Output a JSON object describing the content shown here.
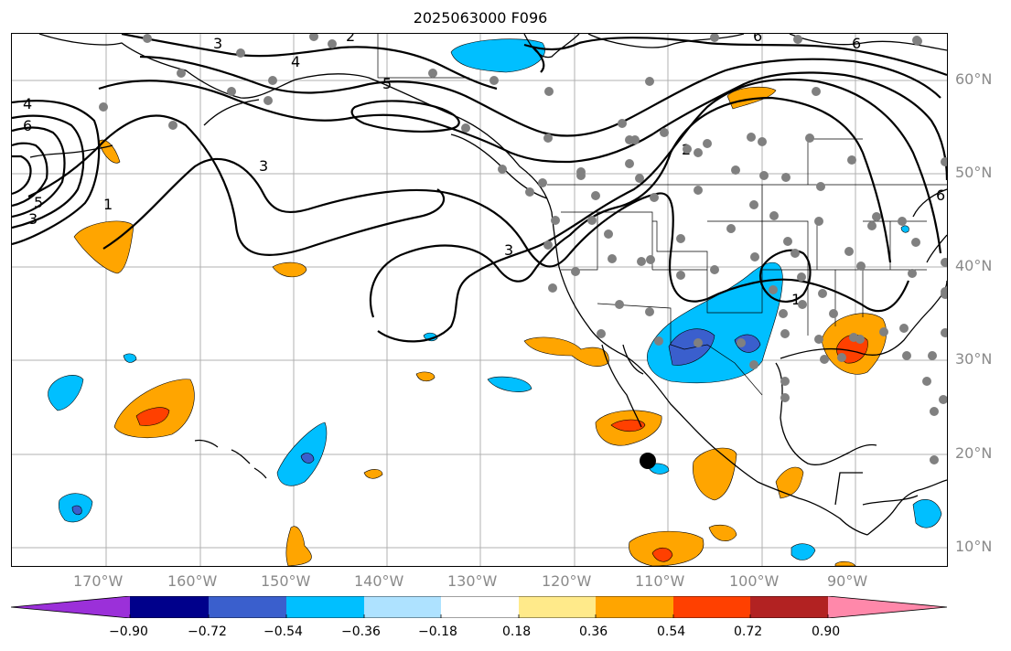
{
  "title": "2025063000 F096",
  "lon_labels": [
    "170°W",
    "160°W",
    "150°W",
    "140°W",
    "130°W",
    "120°W",
    "110°W",
    "100°W",
    "90°W"
  ],
  "lat_labels": [
    "60°N",
    "50°N",
    "40°N",
    "30°N",
    "20°N",
    "10°N"
  ],
  "colorbar": {
    "ticks": [
      "−0.90",
      "−0.72",
      "−0.54",
      "−0.36",
      "−0.18",
      "0.18",
      "0.36",
      "0.54",
      "0.72",
      "0.90"
    ],
    "colors": [
      "#9b30d9",
      "#00008b",
      "#3a5fcd",
      "#00bfff",
      "#aee2ff",
      "#ffffff",
      "#ffea8a",
      "#ffa500",
      "#ff4000",
      "#b22222",
      "#ff88aa"
    ]
  },
  "contour_labels": [
    "3",
    "4",
    "5",
    "6",
    "4",
    "6",
    "5",
    "3",
    "1",
    "3",
    "3",
    "2",
    "1",
    "6",
    "2",
    "6"
  ],
  "colors": {
    "positive_mid": "#ffa500",
    "positive_high": "#ff4000",
    "negative_mid": "#00bfff",
    "negative_high": "#3a5fcd",
    "station": "#808080",
    "contour": "#000000"
  }
}
